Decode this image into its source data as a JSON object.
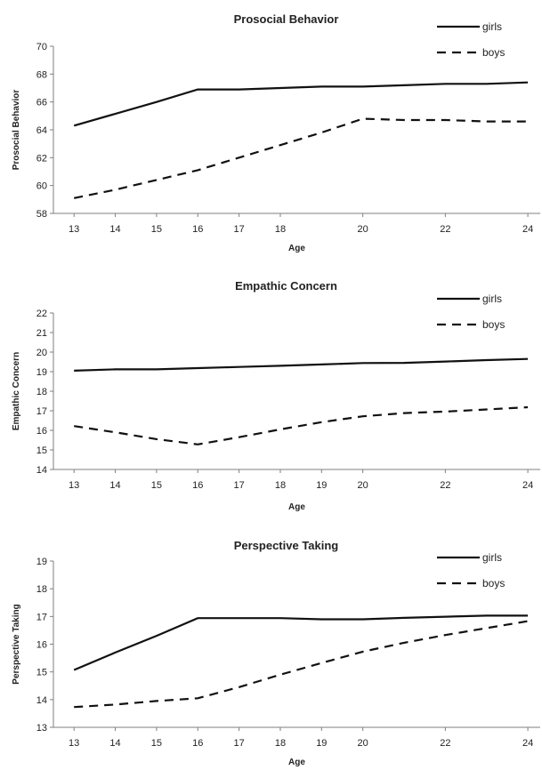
{
  "chart_data": [
    {
      "type": "line",
      "title": "Prosocial Behavior",
      "xlabel": "Age",
      "ylabel": "Prosocial Behavior",
      "ylim": [
        58,
        70
      ],
      "yticks": [
        58,
        60,
        62,
        64,
        66,
        68,
        70
      ],
      "xlim": [
        12.5,
        24.3
      ],
      "xticks": [
        13,
        14,
        15,
        16,
        17,
        18,
        20,
        22,
        24
      ],
      "legend": "top-right",
      "series": [
        {
          "name": "girls",
          "style": "solid",
          "x": [
            13,
            15,
            16,
            17,
            18,
            19,
            20,
            21,
            22,
            23,
            24
          ],
          "y": [
            64.3,
            66.0,
            66.9,
            66.9,
            67.0,
            67.1,
            67.1,
            67.2,
            67.3,
            67.3,
            67.4
          ]
        },
        {
          "name": "boys",
          "style": "dashed",
          "x": [
            13,
            14,
            15,
            16,
            17,
            18,
            19,
            20,
            21,
            22,
            23,
            24
          ],
          "y": [
            59.1,
            59.7,
            60.4,
            61.1,
            62.0,
            62.9,
            63.8,
            64.8,
            64.7,
            64.7,
            64.6,
            64.6
          ]
        }
      ]
    },
    {
      "type": "line",
      "title": "Empathic  Concern",
      "xlabel": "Age",
      "ylabel": "Empathic Concern",
      "ylim": [
        14,
        22
      ],
      "yticks": [
        14,
        15,
        16,
        17,
        18,
        19,
        20,
        21,
        22
      ],
      "xlim": [
        12.5,
        24.3
      ],
      "xticks": [
        13,
        14,
        15,
        16,
        17,
        18,
        19,
        20,
        22,
        24
      ],
      "legend": "top-right",
      "series": [
        {
          "name": "girls",
          "style": "solid",
          "x": [
            13,
            14,
            15,
            16,
            17,
            18,
            19,
            20,
            21,
            22,
            23,
            24
          ],
          "y": [
            19.05,
            19.12,
            19.12,
            19.18,
            19.24,
            19.3,
            19.37,
            19.44,
            19.45,
            19.52,
            19.59,
            19.65
          ]
        },
        {
          "name": "boys",
          "style": "dashed",
          "x": [
            13,
            14,
            15,
            16,
            17,
            18,
            19,
            20,
            21,
            22,
            23,
            24
          ],
          "y": [
            16.22,
            15.9,
            15.55,
            15.28,
            15.65,
            16.05,
            16.42,
            16.72,
            16.88,
            16.96,
            17.07,
            17.18
          ]
        }
      ]
    },
    {
      "type": "line",
      "title": "Perspective Taking",
      "xlabel": "Age",
      "ylabel": "Perspective Taking",
      "ylim": [
        13,
        19
      ],
      "yticks": [
        13,
        14,
        15,
        16,
        17,
        18,
        19
      ],
      "xlim": [
        12.5,
        24.3
      ],
      "xticks": [
        13,
        14,
        15,
        16,
        17,
        18,
        19,
        20,
        22,
        24
      ],
      "legend": "top-right",
      "series": [
        {
          "name": "girls",
          "style": "solid",
          "x": [
            13,
            14,
            15,
            16,
            17,
            18,
            19,
            20,
            21,
            22,
            23,
            24
          ],
          "y": [
            15.07,
            15.7,
            16.3,
            16.94,
            16.94,
            16.94,
            16.9,
            16.9,
            16.95,
            16.99,
            17.03,
            17.03
          ]
        },
        {
          "name": "boys",
          "style": "dashed",
          "x": [
            13,
            14,
            15,
            16,
            17,
            18,
            19,
            20,
            21,
            22,
            23,
            24
          ],
          "y": [
            13.73,
            13.82,
            13.95,
            14.05,
            14.45,
            14.9,
            15.32,
            15.73,
            16.05,
            16.33,
            16.58,
            16.83
          ]
        }
      ]
    }
  ]
}
